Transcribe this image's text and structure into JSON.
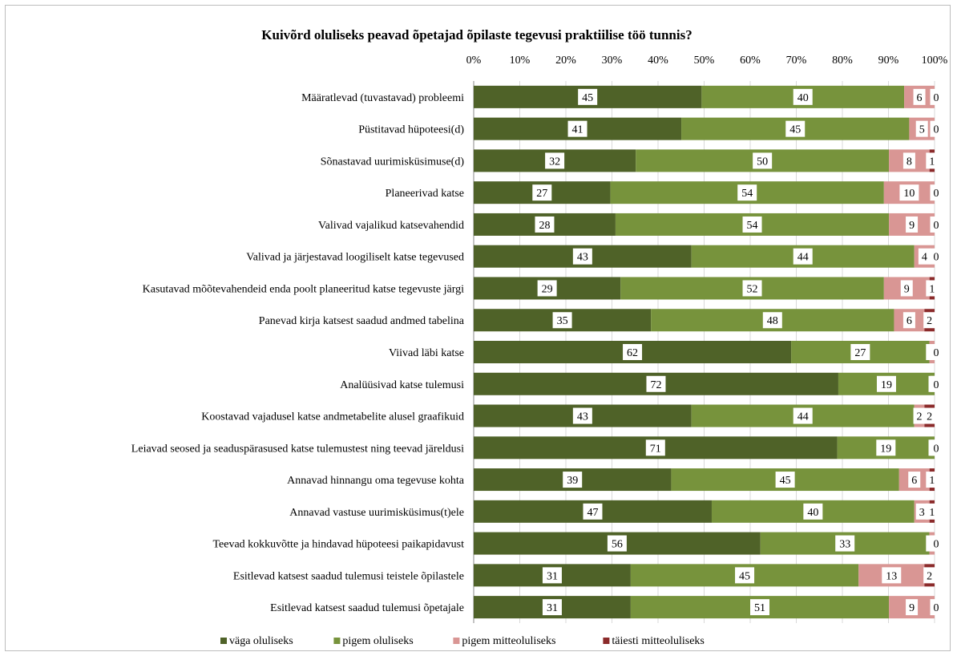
{
  "chart_data": {
    "type": "bar",
    "orientation": "horizontal",
    "stacked": "percent",
    "title": "Kuivõrd oluliseks peavad õpetajad õpilaste tegevusi praktiilise töö tunnis?",
    "xlabel": "",
    "ylabel": "",
    "xlim": [
      0,
      100
    ],
    "x_ticks": [
      "0%",
      "10%",
      "20%",
      "30%",
      "40%",
      "50%",
      "60%",
      "70%",
      "80%",
      "90%",
      "100%"
    ],
    "grid": true,
    "legend_position": "bottom",
    "categories": [
      "Määratlevad (tuvastavad) probleemi",
      "Püstitavad hüpoteesi(d)",
      "Sõnastavad uurimisküsimuse(d)",
      "Planeerivad katse",
      "Valivad  vajalikud katsevahendid",
      "Valivad ja järjestavad loogiliselt  katse tegevused",
      "Kasutavad mõõtevahendeid enda poolt planeeritud katse tegevuste järgi",
      "Panevad kirja katsest saadud andmed tabelina",
      "Viivad läbi  katse",
      "Analüüsivad katse tulemusi",
      "Koostavad vajadusel katse andmetabelite alusel graafikuid",
      "Leiavad seosed ja seaduspärasused katse tulemustest ning  teevad järeldusi",
      "Annavad hinnangu oma tegevuse kohta",
      "Annavad vastuse uurimisküsimus(t)ele",
      "Teevad kokkuvõtte ja hindavad hüpoteesi paikapidavust",
      "Esitlevad katsest saadud tulemusi teistele õpilastele",
      "Esitlevad katsest saadud tulemusi õpetajale"
    ],
    "series": [
      {
        "name": "väga oluliseks",
        "color": "#4f6228",
        "values": [
          45,
          41,
          32,
          27,
          28,
          43,
          29,
          35,
          62,
          72,
          43,
          71,
          39,
          47,
          56,
          31,
          31
        ]
      },
      {
        "name": "pigem oluliseks",
        "color": "#77933c",
        "values": [
          40,
          45,
          50,
          54,
          54,
          44,
          52,
          48,
          27,
          19,
          44,
          19,
          45,
          40,
          33,
          45,
          51
        ]
      },
      {
        "name": "pigem mitteoluliseks",
        "color": "#d99694",
        "values": [
          6,
          5,
          8,
          10,
          9,
          4,
          9,
          6,
          1,
          0,
          2,
          0,
          6,
          3,
          1,
          13,
          9
        ]
      },
      {
        "name": "täiesti mitteoluliseks",
        "color": "#8b2a2a",
        "values": [
          0,
          0,
          1,
          0,
          0,
          0,
          1,
          2,
          0,
          0,
          2,
          0,
          1,
          1,
          0,
          2,
          0
        ]
      }
    ]
  }
}
